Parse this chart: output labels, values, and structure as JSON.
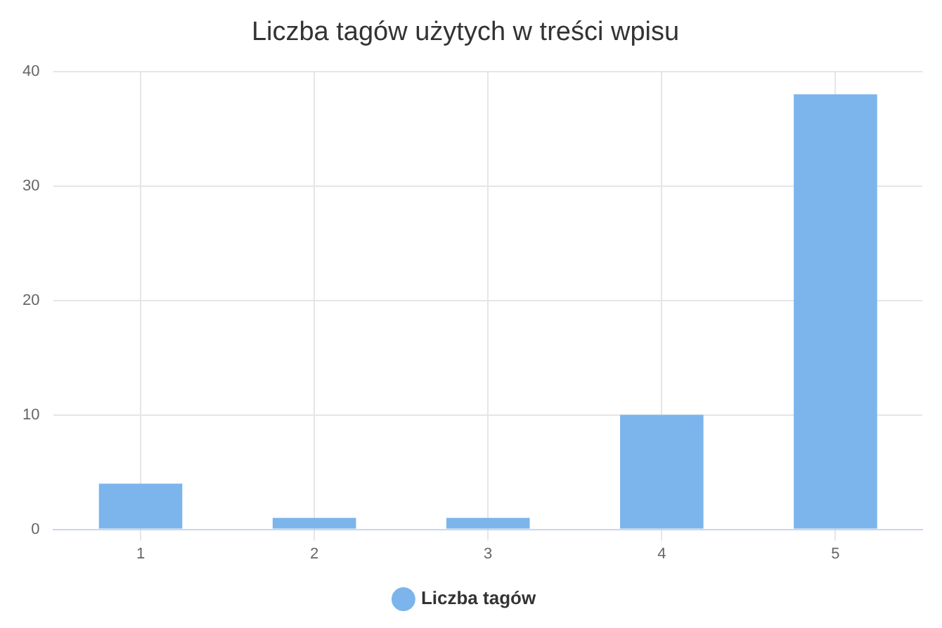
{
  "chart_data": {
    "type": "bar",
    "title": "Liczba tagów użytych w treści wpisu",
    "categories": [
      "1",
      "2",
      "3",
      "4",
      "5"
    ],
    "series": [
      {
        "name": "Liczba tagów",
        "color": "#7cb5ec",
        "values": [
          4,
          1,
          1,
          10,
          38
        ]
      }
    ],
    "ylim": [
      0,
      40
    ],
    "yticks": [
      0,
      10,
      20,
      30,
      40
    ],
    "grid": true,
    "legend": "bottom"
  }
}
